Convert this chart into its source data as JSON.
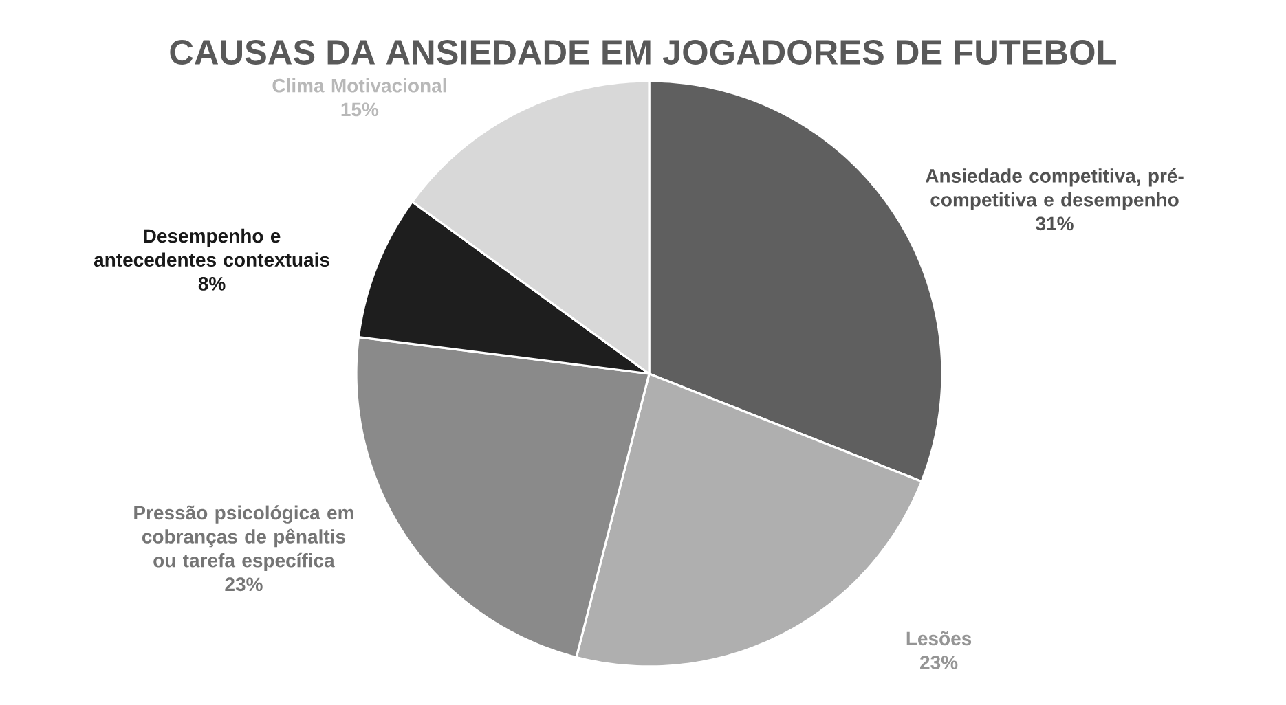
{
  "chart_data": {
    "type": "pie",
    "title": "CAUSAS DA ANSIEDADE EM JOGADORES DE FUTEBOL",
    "categories": [
      "Ansiedade competitiva, pré-competitiva e desempenho",
      "Lesões",
      "Pressão psicológica em cobranças de pênaltis ou tarefa específica",
      "Desempenho e antecedentes contextuais",
      "Clima Motivacional"
    ],
    "values": [
      31,
      23,
      23,
      8,
      15
    ],
    "value_labels": [
      "31%",
      "23%",
      "23%",
      "8%",
      "15%"
    ],
    "colors": [
      "#5f5f5f",
      "#afafaf",
      "#8a8a8a",
      "#1e1e1e",
      "#d8d8d8"
    ]
  }
}
